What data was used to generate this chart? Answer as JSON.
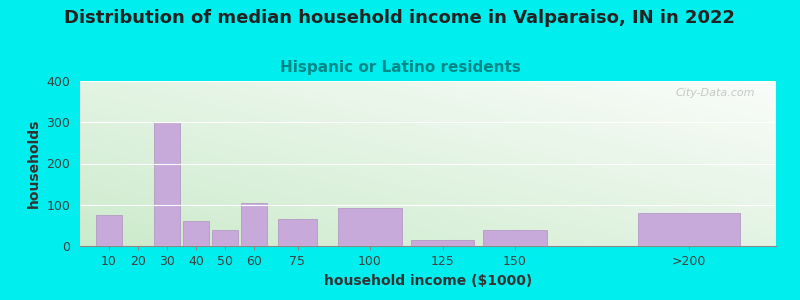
{
  "title": "Distribution of median household income in Valparaiso, IN in 2022",
  "subtitle": "Hispanic or Latino residents",
  "xlabel": "household income ($1000)",
  "ylabel": "households",
  "background_color": "#00EEEE",
  "bar_color": "#C8AADA",
  "bar_edge_color": "#B090C0",
  "categories": [
    "10",
    "20",
    "30",
    "40",
    "50",
    "60",
    "75",
    "100",
    "125",
    "150",
    ">200"
  ],
  "values": [
    75,
    0,
    300,
    60,
    40,
    105,
    65,
    92,
    15,
    40,
    80
  ],
  "bar_positions": [
    10,
    20,
    30,
    40,
    50,
    60,
    75,
    100,
    125,
    150,
    210
  ],
  "bar_widths": [
    10,
    10,
    10,
    10,
    10,
    10,
    15,
    25,
    25,
    25,
    40
  ],
  "ylim": [
    0,
    400
  ],
  "yticks": [
    0,
    100,
    200,
    300,
    400
  ],
  "title_fontsize": 13,
  "subtitle_fontsize": 11,
  "subtitle_color": "#008888",
  "axis_label_fontsize": 10,
  "tick_fontsize": 9,
  "tick_label_color": "#404040",
  "watermark": "City-Data.com",
  "xlim": [
    0,
    240
  ],
  "xtick_positions": [
    10,
    20,
    30,
    40,
    50,
    60,
    75,
    100,
    125,
    150,
    210
  ],
  "xtick_labels": [
    "10",
    "20",
    "30",
    "40",
    "50",
    "60",
    "75",
    "100",
    "125",
    "150",
    ">200"
  ]
}
